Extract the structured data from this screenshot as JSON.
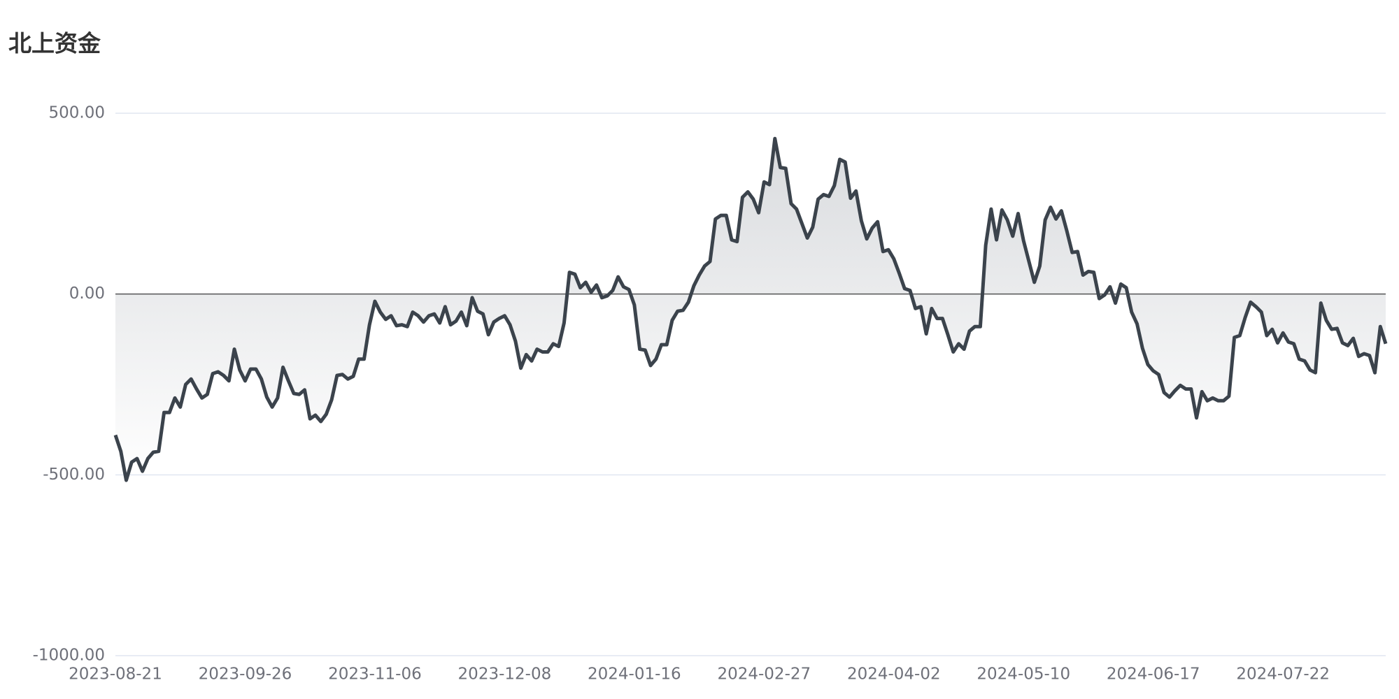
{
  "chart_data": {
    "type": "line",
    "title": "北上资金",
    "categories": [
      "2023-08-21",
      null,
      null,
      null,
      null,
      null,
      null,
      null,
      null,
      null,
      null,
      null,
      null,
      null,
      null,
      null,
      null,
      null,
      null,
      null,
      null,
      null,
      null,
      null,
      "2023-09-26",
      null,
      null,
      null,
      null,
      null,
      null,
      null,
      null,
      null,
      null,
      null,
      null,
      null,
      null,
      null,
      null,
      null,
      null,
      null,
      null,
      null,
      null,
      null,
      "2023-11-06",
      null,
      null,
      null,
      null,
      null,
      null,
      null,
      null,
      null,
      null,
      null,
      null,
      null,
      null,
      null,
      null,
      null,
      null,
      null,
      null,
      null,
      null,
      null,
      "2023-12-08",
      null,
      null,
      null,
      null,
      null,
      null,
      null,
      null,
      null,
      null,
      null,
      null,
      null,
      null,
      null,
      null,
      null,
      null,
      null,
      null,
      null,
      null,
      null,
      "2024-01-16",
      null,
      null,
      null,
      null,
      null,
      null,
      null,
      null,
      null,
      null,
      null,
      null,
      null,
      null,
      null,
      null,
      null,
      null,
      null,
      null,
      null,
      null,
      null,
      "2024-02-27",
      null,
      null,
      null,
      null,
      null,
      null,
      null,
      null,
      null,
      null,
      null,
      null,
      null,
      null,
      null,
      null,
      null,
      null,
      null,
      null,
      null,
      null,
      null,
      "2024-04-02",
      null,
      null,
      null,
      null,
      null,
      null,
      null,
      null,
      null,
      null,
      null,
      null,
      null,
      null,
      null,
      null,
      null,
      null,
      null,
      null,
      null,
      null,
      null,
      "2024-05-10",
      null,
      null,
      null,
      null,
      null,
      null,
      null,
      null,
      null,
      null,
      null,
      null,
      null,
      null,
      null,
      null,
      null,
      null,
      null,
      null,
      null,
      null,
      null,
      "2024-06-17",
      null,
      null,
      null,
      null,
      null,
      null,
      null,
      null,
      null,
      null,
      null,
      null,
      null,
      null,
      null,
      null,
      null,
      null,
      null,
      null,
      null,
      null,
      null,
      "2024-07-22",
      null,
      null,
      null,
      null,
      null,
      null,
      null,
      null,
      null,
      null,
      null,
      null,
      null,
      null,
      null,
      null,
      null,
      null,
      null
    ],
    "values": [
      -390,
      -435,
      -515,
      -465,
      -455,
      -490,
      -455,
      -437.5,
      -435,
      -327.5,
      -327.5,
      -287.5,
      -312.5,
      -250,
      -235,
      -262.5,
      -287.5,
      -277.5,
      -220,
      -215,
      -225,
      -240,
      -152.5,
      -210,
      -240,
      -207.5,
      -207.5,
      -235,
      -285,
      -312.5,
      -287.5,
      -202.5,
      -240,
      -275,
      -277.5,
      -265,
      -345,
      -335,
      -352.5,
      -332.5,
      -292.5,
      -225,
      -222.5,
      -235,
      -227.5,
      -180,
      -180,
      -85,
      -20,
      -50,
      -70,
      -60,
      -87.5,
      -85,
      -90,
      -50,
      -60,
      -77.5,
      -60,
      -55,
      -80,
      -35,
      -85,
      -75,
      -50,
      -87.5,
      -10,
      -47.5,
      -55,
      -112.5,
      -77.5,
      -67.5,
      -60,
      -85,
      -130,
      -205,
      -167.5,
      -185,
      -152.5,
      -160,
      -160,
      -137.5,
      -145,
      -80,
      60,
      55,
      17.5,
      32.5,
      5,
      25,
      -10,
      -5,
      10,
      47.5,
      20,
      12.5,
      -30,
      -152.5,
      -155,
      -197.5,
      -180,
      -140,
      -140,
      -72.5,
      -47.5,
      -45,
      -22.5,
      22.5,
      52.5,
      77.5,
      90,
      207.5,
      217.5,
      217.5,
      150,
      145,
      267.5,
      282.5,
      262.5,
      225,
      310,
      302.5,
      430,
      350,
      347.5,
      250,
      235,
      195,
      155,
      185,
      262.5,
      275,
      270,
      300,
      372.5,
      365,
      265,
      285,
      202.5,
      152.5,
      182.5,
      200,
      117.5,
      122.5,
      97.5,
      57.5,
      15,
      10,
      -40,
      -35,
      -110,
      -40,
      -67.5,
      -67.5,
      -112.5,
      -160,
      -137.5,
      -152.5,
      -102.5,
      -90,
      -90,
      135,
      235,
      150,
      232.5,
      205,
      160,
      222.5,
      147.5,
      90,
      32.5,
      77.5,
      205,
      240,
      207.5,
      230,
      175,
      115,
      117.5,
      52.5,
      62.5,
      60,
      -12.5,
      -2.5,
      20,
      -25,
      27.5,
      17.5,
      -50,
      -82.5,
      -150,
      -195,
      -212.5,
      -222.5,
      -272.5,
      -285,
      -267.5,
      -252.5,
      -262.5,
      -262.5,
      -342.5,
      -270,
      -295,
      -287.5,
      -295,
      -295,
      -282.5,
      -120,
      -115,
      -65,
      -22.5,
      -35,
      -50,
      -115,
      -97.5,
      -135,
      -107.5,
      -132.5,
      -137.5,
      -180,
      -185,
      -210,
      -217.5,
      -25,
      -72.5,
      -97.5,
      -95,
      -135,
      -142.5,
      -122.5,
      -172.5,
      -165,
      -170,
      -217.5,
      -90,
      -137.5
    ],
    "color": "#3b434c",
    "area": true,
    "ylim": [
      -1000,
      500
    ],
    "yticks": [
      {
        "value": -1000,
        "label": "-1000.00"
      },
      {
        "value": -500,
        "label": "-500.00"
      },
      {
        "value": 0,
        "label": "0.00"
      },
      {
        "value": 500,
        "label": "500.00"
      }
    ],
    "grid": true
  }
}
